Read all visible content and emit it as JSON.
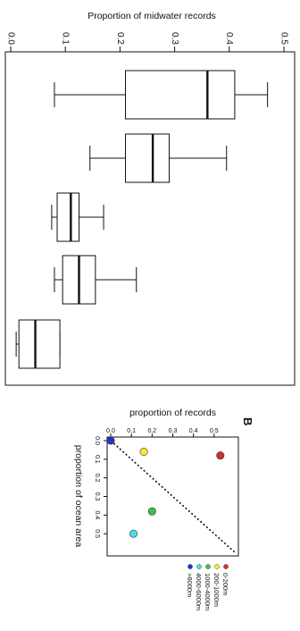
{
  "chart_data": [
    {
      "type": "box",
      "ylabel": "Proportion of midwater records",
      "ylim": [
        0.0,
        0.5
      ],
      "yticks": [
        "0.0",
        "0.1",
        "0.2",
        "0.3",
        "0.4",
        "0.5"
      ],
      "boxes": [
        {
          "min": 0.08,
          "q1": 0.21,
          "median": 0.36,
          "q3": 0.41,
          "max": 0.47
        },
        {
          "min": 0.145,
          "q1": 0.21,
          "median": 0.26,
          "q3": 0.29,
          "max": 0.395
        },
        {
          "min": 0.075,
          "q1": 0.085,
          "median": 0.11,
          "q3": 0.125,
          "max": 0.17
        },
        {
          "min": 0.08,
          "q1": 0.095,
          "median": 0.125,
          "q3": 0.155,
          "max": 0.23
        },
        {
          "min": 0.01,
          "q1": 0.015,
          "median": 0.045,
          "q3": 0.09,
          "max": 0.09
        }
      ]
    },
    {
      "type": "scatter",
      "panel_label": "B",
      "xlabel": "proportion of ocean area",
      "ylabel": "proportion of records",
      "xlim": [
        0.0,
        0.6
      ],
      "ylim": [
        0.0,
        0.6
      ],
      "xticks": [
        "0.0",
        "0.1",
        "0.2",
        "0.3",
        "0.4",
        "0.5"
      ],
      "yticks": [
        "0.0",
        "0.1",
        "0.2",
        "0.3",
        "0.4",
        "0.5"
      ],
      "points": [
        {
          "name": "0-200m",
          "x": 0.08,
          "y": 0.53,
          "color": "#d0312d"
        },
        {
          "name": "200-1000m",
          "x": 0.06,
          "y": 0.16,
          "color": "#f2ec2b"
        },
        {
          "name": "1000-4000m",
          "x": 0.38,
          "y": 0.2,
          "color": "#3cc24a"
        },
        {
          "name": "4000-6000m",
          "x": 0.5,
          "y": 0.11,
          "color": "#49dfe6"
        },
        {
          "name": ">6000m",
          "x": 0.0,
          "y": 0.0,
          "color": "#2233cc"
        }
      ],
      "reference_line": "y = x (dotted)",
      "legend_position": "right"
    }
  ]
}
